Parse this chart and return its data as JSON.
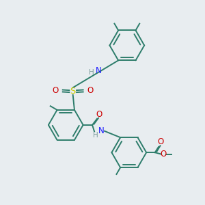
{
  "background_color": "#e8edf0",
  "ring_color": "#2d7d6b",
  "n_color": "#1a1aff",
  "h_color": "#7a9a9a",
  "s_color": "#cccc00",
  "o_color": "#cc0000",
  "lw": 1.4,
  "figsize": [
    3.0,
    3.0
  ],
  "dpi": 100,
  "xlim": [
    0,
    10
  ],
  "ylim": [
    0,
    10
  ]
}
